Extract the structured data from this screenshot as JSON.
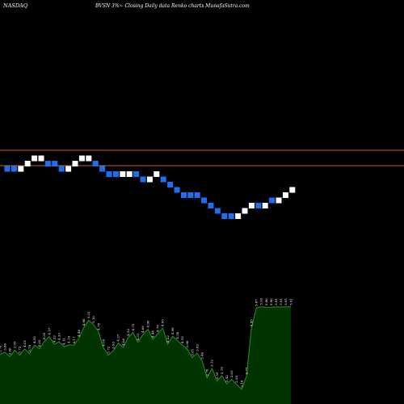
{
  "header": {
    "exchange": "NASDAQ",
    "title": "BVSN  3%~  Closing Daily data  Renko  charts MunafaSutra.com"
  },
  "chart_data": [
    {
      "type": "renko",
      "title": "BVSN 3%~ Closing Daily data Renko charts",
      "brick_colors": {
        "up": "#ffffff",
        "down": "#1e6ff0"
      },
      "reference_line_color": "#c0602a",
      "bricks": [
        {
          "dir": "down",
          "level": 0
        },
        {
          "dir": "down",
          "level": 0
        },
        {
          "dir": "up",
          "level": 0
        },
        {
          "dir": "up",
          "level": 1
        },
        {
          "dir": "up",
          "level": 2
        },
        {
          "dir": "up",
          "level": 2
        },
        {
          "dir": "down",
          "level": 1
        },
        {
          "dir": "down",
          "level": 1
        },
        {
          "dir": "down",
          "level": 0
        },
        {
          "dir": "up",
          "level": 0
        },
        {
          "dir": "up",
          "level": 1
        },
        {
          "dir": "up",
          "level": 2
        },
        {
          "dir": "up",
          "level": 2
        },
        {
          "dir": "down",
          "level": 1
        },
        {
          "dir": "down",
          "level": 0
        },
        {
          "dir": "down",
          "level": -1
        },
        {
          "dir": "down",
          "level": -1
        },
        {
          "dir": "up",
          "level": -1
        },
        {
          "dir": "up",
          "level": -1
        },
        {
          "dir": "down",
          "level": -1
        },
        {
          "dir": "down",
          "level": -2
        },
        {
          "dir": "up",
          "level": -2
        },
        {
          "dir": "up",
          "level": -1
        },
        {
          "dir": "down",
          "level": -2
        },
        {
          "dir": "down",
          "level": -3
        },
        {
          "dir": "down",
          "level": -4
        },
        {
          "dir": "down",
          "level": -5
        },
        {
          "dir": "down",
          "level": -5
        },
        {
          "dir": "down",
          "level": -5
        },
        {
          "dir": "down",
          "level": -6
        },
        {
          "dir": "down",
          "level": -7
        },
        {
          "dir": "down",
          "level": -8
        },
        {
          "dir": "down",
          "level": -9
        },
        {
          "dir": "down",
          "level": -9
        },
        {
          "dir": "up",
          "level": -9
        },
        {
          "dir": "up",
          "level": -8
        },
        {
          "dir": "up",
          "level": -7
        },
        {
          "dir": "down",
          "level": -7
        },
        {
          "dir": "up",
          "level": -7
        },
        {
          "dir": "down",
          "level": -6
        },
        {
          "dir": "up",
          "level": -6
        },
        {
          "dir": "up",
          "level": -5
        },
        {
          "dir": "up",
          "level": -4
        }
      ],
      "volume_area": {
        "fill": "#003300",
        "stroke": "#2a8f2a",
        "values": [
          3.76,
          3.86,
          3.66,
          3.95,
          3.72,
          4.01,
          3.79,
          4.18,
          4.02,
          4.35,
          4.57,
          4.22,
          4.33,
          4.11,
          4.19,
          4.17,
          4.48,
          4.98,
          5.31,
          5.1,
          4.78,
          4.05,
          3.72,
          3.93,
          4.27,
          4.08,
          4.52,
          4.75,
          4.31,
          4.66,
          4.9,
          4.44,
          4.7,
          4.95,
          4.22,
          4.58,
          4.38,
          4.18,
          3.98,
          3.61,
          3.82,
          3.46,
          2.7,
          3.12,
          2.55,
          2.79,
          2.42,
          2.63,
          2.39,
          2.18,
          2.77,
          4.95,
          5.87,
          5.92,
          5.9,
          5.9,
          5.91,
          5.91,
          5.91,
          5.91
        ],
        "labels": [
          "3.76",
          "3.86",
          "3.66",
          "3.95",
          "3.72",
          "4.01",
          "3.79",
          "4.18",
          "4.02",
          "4.35",
          "4.57",
          "4.22",
          "4.33",
          "4.11",
          "4.19",
          "4.17",
          "4.48",
          "4.98",
          "5.31",
          "5.10",
          "4.78",
          "4.05",
          "3.72",
          "3.93",
          "4.27",
          "4.08",
          "4.52",
          "4.75",
          "4.31",
          "4.66",
          "4.90",
          "4.44",
          "4.70",
          "4.95",
          "4.22",
          "4.58",
          "4.38",
          "4.18",
          "3.98",
          "3.61",
          "3.82",
          "3.46",
          "2.70",
          "3.12",
          "2.55",
          "2.79",
          "2.42",
          "2.63",
          "2.39",
          "2.18",
          "2.77",
          "4.95",
          "5.87",
          "5.92",
          "5.90",
          "5.90",
          "5.91",
          "5.91",
          "5.91",
          "5.91"
        ]
      }
    }
  ]
}
